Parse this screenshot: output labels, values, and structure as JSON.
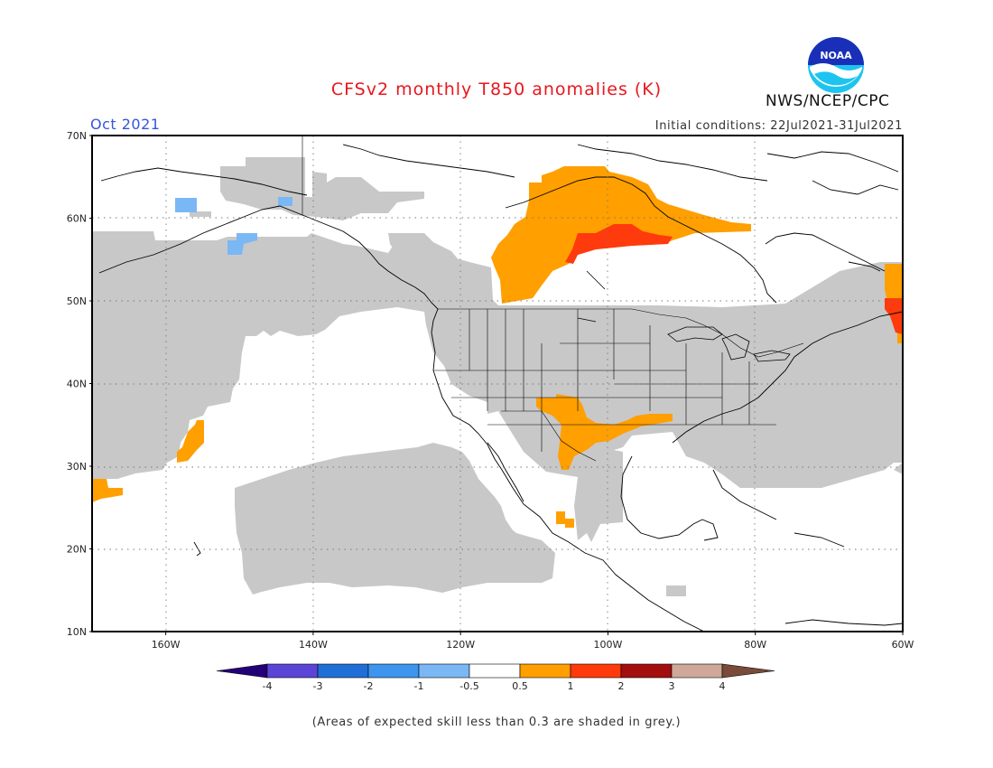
{
  "header": {
    "title": "CFSv2 monthly T850 anomalies (K)",
    "agency": "NWS/NCEP/CPC",
    "target_month": "Oct 2021",
    "initial_conditions": "Initial conditions: 22Jul2021-31Jul2021"
  },
  "logo": {
    "icon": "noaa-logo-icon",
    "text": "NOAA"
  },
  "axes": {
    "lon_labels": [
      "160W",
      "140W",
      "120W",
      "100W",
      "80W",
      "60W"
    ],
    "lat_labels": [
      "70N",
      "60N",
      "50N",
      "40N",
      "30N",
      "20N",
      "10N"
    ],
    "lon_range": [
      -170,
      -60
    ],
    "lat_range": [
      10,
      70
    ]
  },
  "colorbar": {
    "labels": [
      "-4",
      "-3",
      "-2",
      "-1",
      "-0.5",
      "0.5",
      "1",
      "2",
      "3",
      "4"
    ],
    "colors": [
      "#240078",
      "#5b45d6",
      "#1f6fd6",
      "#3d95ee",
      "#7ab8f5",
      "#ffffff",
      "#ff9f00",
      "#ff3a0c",
      "#a30e0e",
      "#cfa89a",
      "#7a4a3a"
    ]
  },
  "legend_colors": {
    "low_skill": "#c8c8c8",
    "warm_05_1": "#ff9f00",
    "warm_1_2": "#ff3a0c",
    "cool_05_1": "#7ab8f5"
  },
  "footnote": "(Areas of expected skill less than 0.3 are shaded in grey.)"
}
